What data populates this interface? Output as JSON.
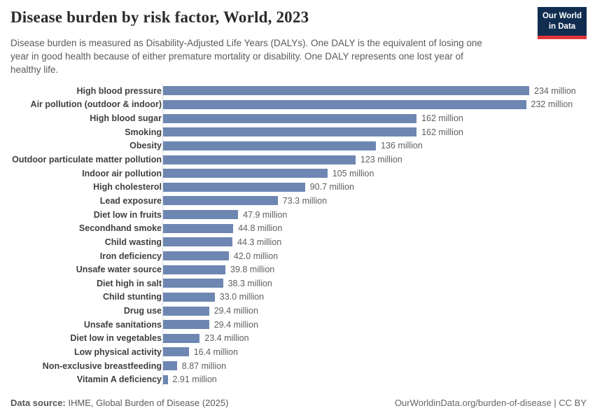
{
  "header": {
    "title": "Disease burden by risk factor, World, 2023",
    "subtitle_lines": [
      "Disease burden is measured as Disability-Adjusted Life Years (DALYs). One DALY is the equivalent of losing one",
      "year in good health because of either premature mortality or disability. One DALY represents one lost year of",
      "healthy life."
    ],
    "logo": {
      "line1": "Our World",
      "line2": "in Data",
      "bg_color": "#102d4f",
      "accent_color": "#e0363c"
    }
  },
  "chart_data": {
    "type": "bar",
    "orientation": "horizontal",
    "title": "Disease burden by risk factor, World, 2023",
    "unit": "DALYs (millions)",
    "xlabel": "",
    "ylabel": "",
    "xmax": 234,
    "grid": false,
    "legend": "none",
    "bar_color": "#6e87b2",
    "categories": [
      "High blood pressure",
      "Air pollution (outdoor & indoor)",
      "High blood sugar",
      "Smoking",
      "Obesity",
      "Outdoor particulate matter pollution",
      "Indoor air pollution",
      "High cholesterol",
      "Lead exposure",
      "Diet low in fruits",
      "Secondhand smoke",
      "Child wasting",
      "Iron deficiency",
      "Unsafe water source",
      "Diet high in salt",
      "Child stunting",
      "Drug use",
      "Unsafe sanitations",
      "Diet low in vegetables",
      "Low physical activity",
      "Non-exclusive breastfeeding",
      "Vitamin A deficiency"
    ],
    "values": [
      234,
      232,
      162,
      162,
      136,
      123,
      105,
      90.7,
      73.3,
      47.9,
      44.8,
      44.3,
      42.0,
      39.8,
      38.3,
      33.0,
      29.4,
      29.4,
      23.4,
      16.4,
      8.87,
      2.91
    ],
    "value_labels": [
      "234 million",
      "232 million",
      "162 million",
      "162 million",
      "136 million",
      "123 million",
      "105 million",
      "90.7 million",
      "73.3 million",
      "47.9 million",
      "44.8 million",
      "44.3 million",
      "42.0 million",
      "39.8 million",
      "38.3 million",
      "33.0 million",
      "29.4 million",
      "29.4 million",
      "23.4 million",
      "16.4 million",
      "8.87 million",
      "2.91 million"
    ]
  },
  "footer": {
    "source_label": "Data source:",
    "source_text": " IHME, Global Burden of Disease (2025)",
    "citation": "OurWorldinData.org/burden-of-disease | CC BY"
  }
}
